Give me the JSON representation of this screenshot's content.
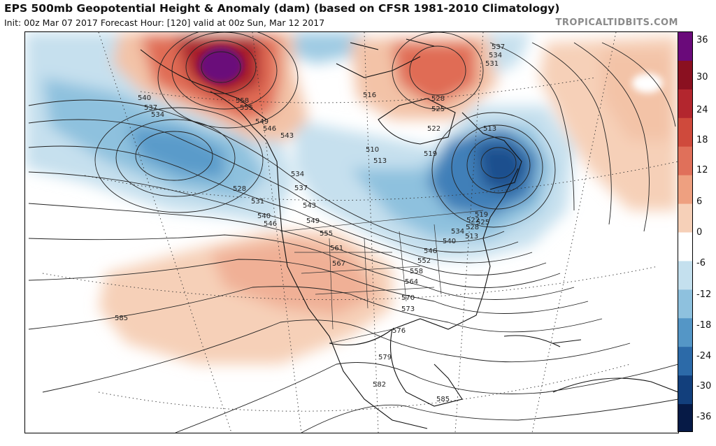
{
  "header": {
    "title": "EPS 500mb Geopotential Height & Anomaly (dam) (based on CFSR 1981-2010 Climatology)",
    "subtitle": "Init: 00z Mar 07 2017   Forecast Hour: [120]   valid at 00z Sun, Mar 12 2017",
    "credit": "TROPICALTIDBITS.COM"
  },
  "colorbar": {
    "labels": [
      "36",
      "30",
      "24",
      "18",
      "12",
      "6",
      "0",
      "-6",
      "-12",
      "-18",
      "-24",
      "-30",
      "-36"
    ],
    "colors": [
      "#6a0a7a",
      "#8a1020",
      "#b3262e",
      "#cf4a3c",
      "#e0705a",
      "#eea080",
      "#f6d0b8",
      "#ffffff",
      "#c4e0ee",
      "#8ec1de",
      "#5496c6",
      "#2c6aa8",
      "#123f7c",
      "#061a46"
    ]
  },
  "contour_labels": [
    {
      "text": "537"
    },
    {
      "text": "534"
    },
    {
      "text": "531"
    },
    {
      "text": "528"
    },
    {
      "text": "525"
    },
    {
      "text": "522"
    },
    {
      "text": "516"
    },
    {
      "text": "519"
    },
    {
      "text": "513"
    },
    {
      "text": "510"
    },
    {
      "text": "513"
    },
    {
      "text": "540"
    },
    {
      "text": "537"
    },
    {
      "text": "534"
    },
    {
      "text": "558"
    },
    {
      "text": "555"
    },
    {
      "text": "549"
    },
    {
      "text": "546"
    },
    {
      "text": "543"
    },
    {
      "text": "534"
    },
    {
      "text": "537"
    },
    {
      "text": "528"
    },
    {
      "text": "531"
    },
    {
      "text": "540"
    },
    {
      "text": "546"
    },
    {
      "text": "543"
    },
    {
      "text": "549"
    },
    {
      "text": "555"
    },
    {
      "text": "561"
    },
    {
      "text": "567"
    },
    {
      "text": "546"
    },
    {
      "text": "552"
    },
    {
      "text": "558"
    },
    {
      "text": "564"
    },
    {
      "text": "570"
    },
    {
      "text": "573"
    },
    {
      "text": "576"
    },
    {
      "text": "579"
    },
    {
      "text": "582"
    },
    {
      "text": "585"
    },
    {
      "text": "585"
    },
    {
      "text": "519"
    },
    {
      "text": "522"
    },
    {
      "text": "525"
    },
    {
      "text": "528"
    },
    {
      "text": "534"
    },
    {
      "text": "540"
    },
    {
      "text": "513"
    }
  ]
}
